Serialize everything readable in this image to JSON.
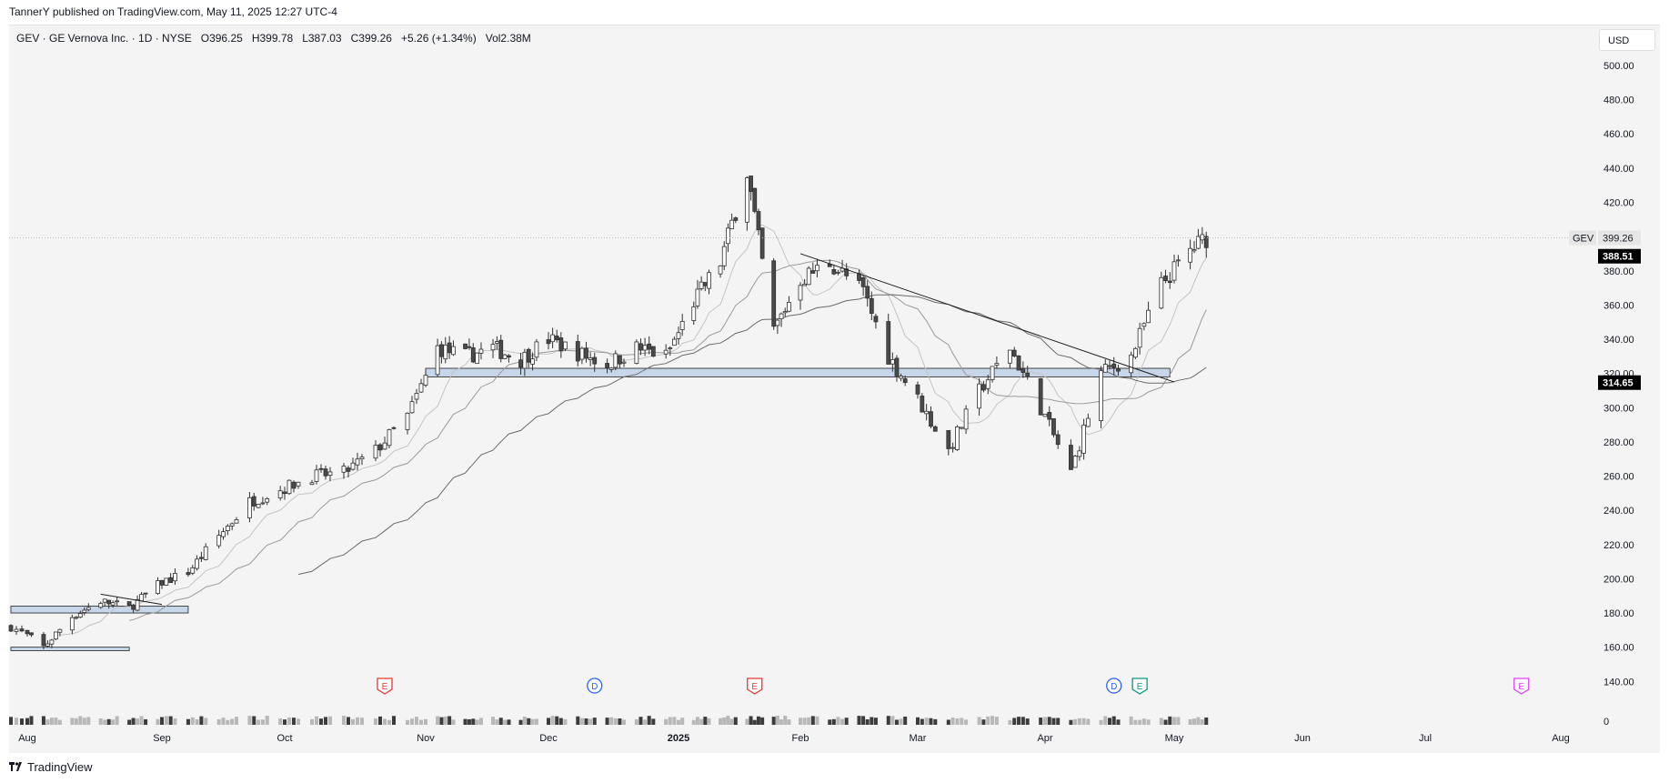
{
  "header": {
    "published": "TannerY published on TradingView.com, May 11, 2025 12:27 UTC-4"
  },
  "legend": {
    "symbol": "GEV · GE Vernova Inc. · 1D · NYSE",
    "open": "O396.25",
    "high": "H399.78",
    "low": "L387.03",
    "close": "C399.26",
    "change": "+5.26 (+1.34%)",
    "volume": "Vol2.38M"
  },
  "currency": "USD",
  "footer": {
    "brand": "TradingView",
    "logo_icon": "tradingview-logo-icon"
  },
  "price_tags": {
    "last": {
      "symbol": "GEV",
      "value": "399.26"
    },
    "ma_tag": {
      "value": "388.51"
    },
    "ma_tag2": {
      "value": "314.65"
    }
  },
  "colors": {
    "up": "#ffffff",
    "down": "#4a4a4a",
    "wick": "#303030",
    "zone_fill": "#c8d6ea",
    "zone_border": "#1e1e1e",
    "event_earnings": "#e53935",
    "event_dividend": "#2962ff",
    "event_earnings_future": "#e040fb",
    "event_earnings_alt": "#089981"
  },
  "chart_data": {
    "type": "candlestick",
    "symbol": "GEV",
    "interval": "1D",
    "y_ticks": [
      500,
      480,
      460,
      440,
      420,
      400,
      380,
      360,
      340,
      320,
      300,
      280,
      260,
      240,
      220,
      200,
      180,
      160,
      140
    ],
    "y_labels": [
      "500.00",
      "480.00",
      "460.00",
      "440.00",
      "420.00",
      "",
      "380.00",
      "360.00",
      "340.00",
      "320.00",
      "300.00",
      "280.00",
      "260.00",
      "240.00",
      "220.00",
      "200.00",
      "180.00",
      "160.00",
      "140.00"
    ],
    "ylim": [
      129,
      517
    ],
    "volume_axis_label": "0",
    "x_labels": [
      {
        "label": "Aug",
        "date": "2024-08-01",
        "bold": false
      },
      {
        "label": "Sep",
        "date": "2024-09-03",
        "bold": false
      },
      {
        "label": "Oct",
        "date": "2024-10-01",
        "bold": false
      },
      {
        "label": "Nov",
        "date": "2024-11-01",
        "bold": false
      },
      {
        "label": "Dec",
        "date": "2024-12-02",
        "bold": false
      },
      {
        "label": "2025",
        "date": "2025-01-02",
        "bold": true
      },
      {
        "label": "Feb",
        "date": "2025-02-03",
        "bold": false
      },
      {
        "label": "Mar",
        "date": "2025-03-03",
        "bold": false
      },
      {
        "label": "Apr",
        "date": "2025-04-01",
        "bold": false
      },
      {
        "label": "May",
        "date": "2025-05-01",
        "bold": false
      },
      {
        "label": "Jun",
        "date": "2025-06-02",
        "bold": false
      },
      {
        "label": "Jul",
        "date": "2025-07-01",
        "bold": false
      },
      {
        "label": "Aug",
        "date": "2025-08-01",
        "bold": false
      }
    ],
    "closes_weekly": [
      {
        "date": "2024-07-29",
        "close": 172
      },
      {
        "date": "2024-08-05",
        "close": 160
      },
      {
        "date": "2024-08-12",
        "close": 178
      },
      {
        "date": "2024-08-19",
        "close": 187
      },
      {
        "date": "2024-08-26",
        "close": 183
      },
      {
        "date": "2024-09-03",
        "close": 198
      },
      {
        "date": "2024-09-09",
        "close": 204
      },
      {
        "date": "2024-09-16",
        "close": 225
      },
      {
        "date": "2024-09-23",
        "close": 245
      },
      {
        "date": "2024-09-30",
        "close": 252
      },
      {
        "date": "2024-10-07",
        "close": 260
      },
      {
        "date": "2024-10-14",
        "close": 262
      },
      {
        "date": "2024-10-21",
        "close": 275
      },
      {
        "date": "2024-10-28",
        "close": 295
      },
      {
        "date": "2024-11-04",
        "close": 335
      },
      {
        "date": "2024-11-11",
        "close": 330
      },
      {
        "date": "2024-11-18",
        "close": 335
      },
      {
        "date": "2024-11-25",
        "close": 328
      },
      {
        "date": "2024-12-02",
        "close": 340
      },
      {
        "date": "2024-12-09",
        "close": 332
      },
      {
        "date": "2024-12-16",
        "close": 325
      },
      {
        "date": "2024-12-23",
        "close": 335
      },
      {
        "date": "2024-12-30",
        "close": 330
      },
      {
        "date": "2025-01-06",
        "close": 362
      },
      {
        "date": "2025-01-13",
        "close": 385
      },
      {
        "date": "2025-01-20",
        "close": 438
      },
      {
        "date": "2025-01-27",
        "close": 345
      },
      {
        "date": "2025-02-03",
        "close": 375
      },
      {
        "date": "2025-02-10",
        "close": 385
      },
      {
        "date": "2025-02-18",
        "close": 368
      },
      {
        "date": "2025-02-24",
        "close": 330
      },
      {
        "date": "2025-03-03",
        "close": 305
      },
      {
        "date": "2025-03-10",
        "close": 275
      },
      {
        "date": "2025-03-17",
        "close": 310
      },
      {
        "date": "2025-03-24",
        "close": 335
      },
      {
        "date": "2025-03-31",
        "close": 300
      },
      {
        "date": "2025-04-07",
        "close": 262
      },
      {
        "date": "2025-04-14",
        "close": 320
      },
      {
        "date": "2025-04-21",
        "close": 330
      },
      {
        "date": "2025-04-28",
        "close": 372
      },
      {
        "date": "2025-05-05",
        "close": 392
      },
      {
        "date": "2025-05-09",
        "close": 399.26
      }
    ],
    "horizontal_zones": [
      {
        "from": "2024-11-01",
        "to": "2025-04-30",
        "low": 318,
        "high": 323
      },
      {
        "from": "2024-07-29",
        "to": "2024-09-09",
        "low": 180,
        "high": 184
      },
      {
        "from": "2024-07-29",
        "to": "2024-08-26",
        "low": 158,
        "high": 160
      }
    ],
    "trendlines": [
      {
        "from_date": "2025-02-03",
        "from": 390,
        "to_date": "2025-05-01",
        "to": 315
      },
      {
        "from_date": "2024-08-19",
        "from": 191,
        "to_date": "2024-09-03",
        "to": 185
      }
    ],
    "events": [
      {
        "date": "2024-10-23",
        "type": "E",
        "kind": "earnings"
      },
      {
        "date": "2024-12-13",
        "type": "D",
        "kind": "dividend"
      },
      {
        "date": "2025-01-22",
        "type": "E",
        "kind": "earnings"
      },
      {
        "date": "2025-04-17",
        "type": "D",
        "kind": "dividend"
      },
      {
        "date": "2025-04-23",
        "type": "E",
        "kind": "earnings_alt"
      },
      {
        "date": "2025-07-23",
        "type": "E",
        "kind": "earnings_future"
      }
    ]
  }
}
